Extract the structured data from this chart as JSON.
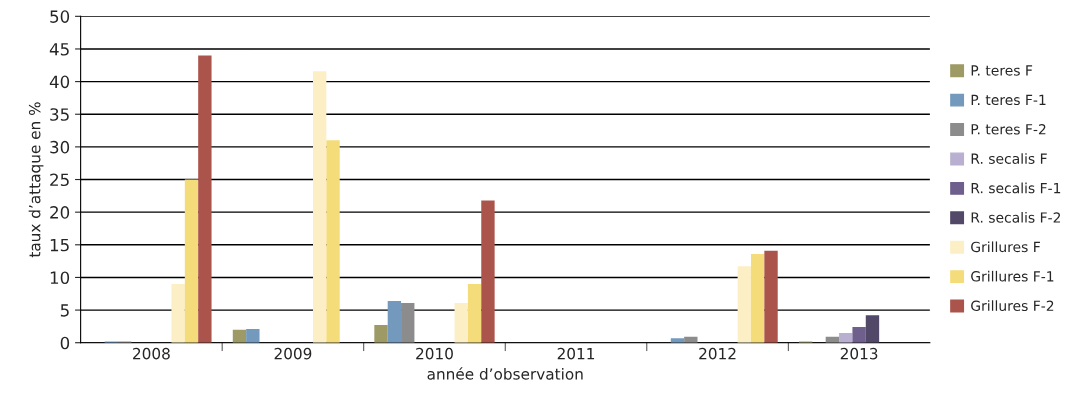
{
  "chart_data": {
    "type": "bar",
    "xlabel": "année d’observation",
    "ylabel": "taux d’attaque en %",
    "categories": [
      "2008",
      "2009",
      "2010",
      "2011",
      "2012",
      "2013"
    ],
    "series": [
      {
        "name": "P. teres F",
        "color": "#9e9a66",
        "values": [
          null,
          2.0,
          2.7,
          null,
          null,
          0.2
        ]
      },
      {
        "name": "P. teres F-1",
        "color": "#7399bd",
        "values": [
          0.2,
          2.1,
          6.4,
          null,
          0.7,
          null
        ]
      },
      {
        "name": "P. teres F-2",
        "color": "#8c8c8c",
        "values": [
          0.2,
          null,
          6.1,
          null,
          0.9,
          0.9
        ]
      },
      {
        "name": "R. secalis F",
        "color": "#b9afd1",
        "values": [
          null,
          null,
          null,
          null,
          null,
          1.5
        ]
      },
      {
        "name": "R. secalis F-1",
        "color": "#6e5f8c",
        "values": [
          null,
          null,
          null,
          null,
          null,
          2.4
        ]
      },
      {
        "name": "R. secalis F-2",
        "color": "#524868",
        "values": [
          null,
          null,
          null,
          null,
          null,
          4.2
        ]
      },
      {
        "name": "Grillures F",
        "color": "#fcefc5",
        "values": [
          9.0,
          41.6,
          6.1,
          null,
          11.7,
          null
        ]
      },
      {
        "name": "Grillures F-1",
        "color": "#f5dc7a",
        "values": [
          25.0,
          31.0,
          9.0,
          null,
          13.6,
          null
        ]
      },
      {
        "name": "Grillures F-2",
        "color": "#ab544b",
        "values": [
          44.0,
          null,
          21.8,
          null,
          14.1,
          null
        ]
      }
    ],
    "ylim": [
      0,
      50
    ],
    "yticks": [
      0,
      5,
      10,
      15,
      20,
      25,
      30,
      35,
      40,
      45,
      50
    ],
    "grid": "y",
    "legend": "right"
  }
}
